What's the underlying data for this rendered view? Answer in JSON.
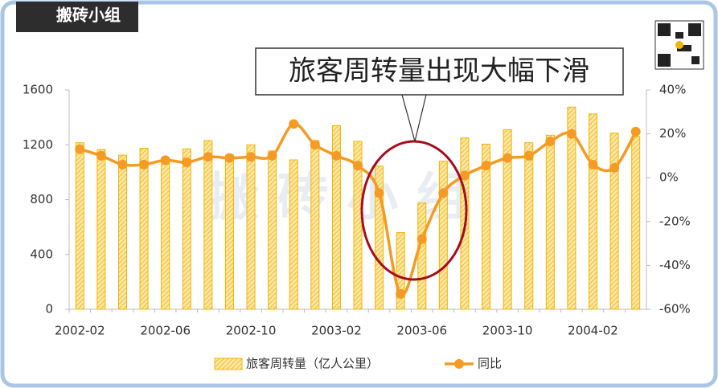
{
  "chart_data": {
    "type": "bar",
    "logo": "搬砖小组",
    "annotation": "旅客周转量出现大幅下滑",
    "watermark": "搬 砖 小 组",
    "categories": [
      "2002-02",
      null,
      null,
      null,
      "2002-06",
      null,
      null,
      null,
      "2002-10",
      null,
      null,
      null,
      "2003-02",
      null,
      null,
      null,
      "2003-06",
      null,
      null,
      null,
      "2003-10",
      null,
      null,
      null,
      "2004-02",
      null,
      null
    ],
    "series": [
      {
        "name": "旅客周转量（亿人公里）",
        "type": "bar",
        "color": "#f5b400",
        "values": [
          1215,
          1165,
          1125,
          1175,
          1100,
          1170,
          1230,
          1125,
          1200,
          1155,
          1090,
          1230,
          1340,
          1225,
          1045,
          560,
          775,
          1080,
          1250,
          1205,
          1310,
          1215,
          1270,
          1475,
          1425,
          1285,
          1260
        ]
      },
      {
        "name": "同比",
        "type": "line",
        "axis": "y2",
        "color": "#f59a23",
        "values": [
          13,
          10,
          6,
          6,
          8,
          7,
          9.5,
          9,
          9.5,
          10,
          24.5,
          15,
          10,
          5.5,
          -7,
          -53,
          -28,
          -7,
          1,
          5.5,
          9,
          10,
          16.5,
          20,
          6,
          4.5,
          21
        ]
      }
    ],
    "ylim": [
      0,
      1600
    ],
    "yticks": [
      0,
      400,
      800,
      1200,
      1600
    ],
    "y2lim": [
      -60,
      40
    ],
    "y2ticks": [
      {
        "value": -60,
        "label": "-60%"
      },
      {
        "value": -40,
        "label": "-40%"
      },
      {
        "value": -20,
        "label": "-20%"
      },
      {
        "value": 0,
        "label": "0%"
      },
      {
        "value": 20,
        "label": "20%"
      },
      {
        "value": 40,
        "label": "40%"
      }
    ],
    "grid": false
  }
}
